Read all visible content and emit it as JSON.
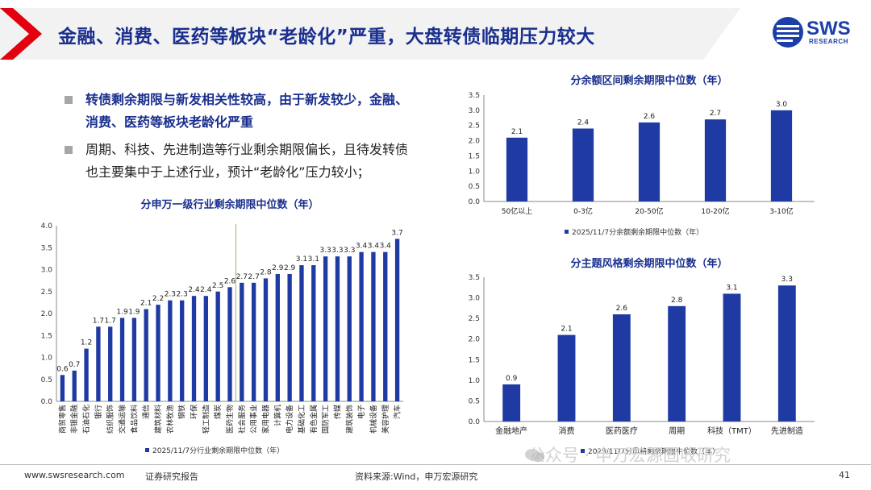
{
  "header": {
    "title": "金融、消费、医药等板块“老龄化”严重，大盘转债临期压力较大",
    "logo_text": "SWS",
    "logo_subtext": "RESEARCH"
  },
  "bullets": [
    {
      "text": "转债剩余期限与新发相关性较高，由于新发较少，金融、消费、医药等板块老龄化严重",
      "style": "bold"
    },
    {
      "text": "周期、科技、先进制造等行业剩余期限偏长，且待发转债也主要集中于上述行业，预计“老龄化”压力较小；",
      "style": "plain"
    }
  ],
  "chart_data": [
    {
      "type": "bar",
      "title": "分申万一级行业剩余期限中位数（年）",
      "legend": "2025/11/7分行业剩余期限中位数（年）",
      "color": "#1f3ba3",
      "ylim": [
        0,
        4.0
      ],
      "yticks": [
        "0.0",
        "0.5",
        "1.0",
        "1.5",
        "2.0",
        "2.5",
        "3.0",
        "3.5",
        "4.0"
      ],
      "categories": [
        "商贸零售",
        "非银金融",
        "石油石化",
        "银行",
        "纺织服饰",
        "交通运输",
        "食品饮料",
        "通信",
        "建筑材料",
        "农林牧渔",
        "钢铁",
        "环保",
        "轻工制造",
        "煤炭",
        "医药生物",
        "社会服务",
        "公用事业",
        "家用电器",
        "计算机",
        "电力设备",
        "基础化工",
        "有色金属",
        "国防军工",
        "传媒",
        "建筑装饰",
        "电子",
        "机械设备",
        "美容护理",
        "汽车"
      ],
      "values": [
        0.6,
        0.7,
        1.2,
        1.7,
        1.7,
        1.9,
        1.9,
        2.1,
        2.2,
        2.3,
        2.3,
        2.4,
        2.4,
        2.5,
        2.6,
        2.7,
        2.7,
        2.8,
        2.9,
        2.9,
        3.1,
        3.1,
        3.3,
        3.3,
        3.3,
        3.4,
        3.4,
        3.4,
        3.7
      ],
      "labels": [
        "0.6",
        "0.7",
        "1.2",
        "1.7",
        "1.7",
        "1.9",
        "1.9",
        "2.1",
        "2.2",
        "2.3",
        "2.3",
        "2.4",
        "2.4",
        "2.5",
        "2.6",
        "2.7",
        "2.7",
        "2.8",
        "2.9",
        "2.9",
        "3.1",
        "3.1",
        "3.3",
        "3.3",
        "3.3",
        "3.4",
        "3.4",
        "3.4",
        "3.7"
      ],
      "divider_after_index": 14
    },
    {
      "type": "bar",
      "title": "分余额区间剩余期限中位数（年）",
      "legend": "2025/11/7分余额剩余期限中位数（年）",
      "color": "#1f3ba3",
      "ylim": [
        0,
        3.5
      ],
      "yticks": [
        "0.0",
        "0.5",
        "1.0",
        "1.5",
        "2.0",
        "2.5",
        "3.0",
        "3.5"
      ],
      "categories": [
        "50亿以上",
        "0-3亿",
        "20-50亿",
        "10-20亿",
        "3-10亿"
      ],
      "values": [
        2.1,
        2.4,
        2.6,
        2.7,
        3.0
      ],
      "labels": [
        "2.1",
        "2.4",
        "2.6",
        "2.7",
        "3.0"
      ]
    },
    {
      "type": "bar",
      "title": "分主题风格剩余期限中位数（年）",
      "legend": "2025/11/7分风格剩余期限中位数（年）",
      "color": "#1f3ba3",
      "ylim": [
        0,
        3.5
      ],
      "yticks": [
        "0.0",
        "0.5",
        "1.0",
        "1.5",
        "2.0",
        "2.5",
        "3.0",
        "3.5"
      ],
      "categories": [
        "金融地产",
        "消费",
        "医药医疗",
        "周期",
        "科技（TMT）",
        "先进制造"
      ],
      "values": [
        0.9,
        2.1,
        2.6,
        2.8,
        3.1,
        3.3
      ],
      "labels": [
        "0.9",
        "2.1",
        "2.6",
        "2.8",
        "3.1",
        "3.3"
      ]
    }
  ],
  "footer": {
    "website": "www.swsresearch.com",
    "report_type": "证券研究报告",
    "source": "资料来源:Wind，申万宏源研究",
    "page": "41"
  },
  "watermark": "公众号 · 申万宏源固收研究"
}
